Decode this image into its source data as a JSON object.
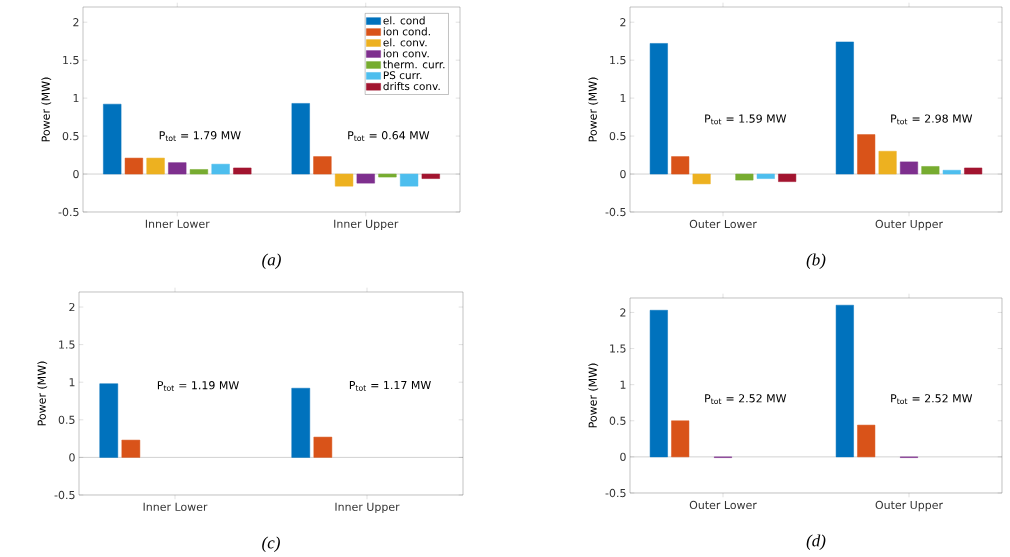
{
  "chart_data": [
    {
      "type": "bar",
      "categories": [
        "Inner Lower",
        "Inner Upper"
      ],
      "ylabel": "Power (MW)",
      "ylim": [
        -0.5,
        2.2
      ],
      "yticks": [
        -0.5,
        0,
        0.5,
        1,
        1.5,
        2
      ],
      "legend": "top right",
      "series": [
        {
          "name": "el. cond",
          "color": "#0072bd",
          "values": [
            0.92,
            0.93
          ]
        },
        {
          "name": "ion cond.",
          "color": "#d95319",
          "values": [
            0.21,
            0.23
          ]
        },
        {
          "name": "el. conv.",
          "color": "#edb120",
          "values": [
            0.21,
            -0.16
          ]
        },
        {
          "name": "ion conv.",
          "color": "#7e2f8e",
          "values": [
            0.15,
            -0.12
          ]
        },
        {
          "name": "therm. curr.",
          "color": "#77ac30",
          "values": [
            0.06,
            -0.04
          ]
        },
        {
          "name": "PS curr.",
          "color": "#4dbeee",
          "values": [
            0.13,
            -0.16
          ]
        },
        {
          "name": "drifts conv.",
          "color": "#a2142f",
          "values": [
            0.08,
            -0.06
          ]
        }
      ],
      "annotations": [
        "P$_{tot}$ = 1.79 MW",
        "P$_{tot}$ = 0.64 MW",
        "(a)"
      ]
    },
    {
      "type": "bar",
      "categories": [
        "Outer Lower",
        "Outer Upper"
      ],
      "ylabel": "Power (MW)",
      "ylim": [
        -0.5,
        2.2
      ],
      "yticks": [
        -0.5,
        0,
        0.5,
        1,
        1.5,
        2
      ],
      "series": [
        {
          "color": "#0072bd",
          "values": [
            1.72,
            1.74
          ]
        },
        {
          "color": "#d95319",
          "values": [
            0.23,
            0.52
          ]
        },
        {
          "color": "#edb120",
          "values": [
            -0.13,
            0.3
          ]
        },
        {
          "color": "#7e2f8e",
          "values": [
            0,
            0.16
          ]
        },
        {
          "color": "#77ac30",
          "values": [
            -0.08,
            0.1
          ]
        },
        {
          "color": "#4dbeee",
          "values": [
            -0.06,
            0.05
          ]
        },
        {
          "color": "#a2142f",
          "values": [
            -0.1,
            0.08
          ]
        }
      ],
      "annotations": [
        "P$_{tot}$ = 1.59 MW",
        "P$_{tot}$ = 2.98 MW",
        "(b)"
      ]
    },
    {
      "type": "bar",
      "categories": [
        "Inner Lower",
        "Inner Upper"
      ],
      "ylabel": "Power (MW)",
      "ylim": [
        -0.5,
        2.2
      ],
      "yticks": [
        -0.5,
        0,
        0.5,
        1,
        1.5,
        2
      ],
      "series": [
        {
          "color": "#0072bd",
          "values": [
            0.98,
            0.92
          ]
        },
        {
          "color": "#d95319",
          "values": [
            0.23,
            0.27
          ]
        },
        {
          "color": "#edb120",
          "values": [
            0,
            0
          ]
        },
        {
          "color": "#7e2f8e",
          "values": [
            0,
            0
          ]
        },
        {
          "color": "#77ac30",
          "values": [
            0,
            0
          ]
        },
        {
          "color": "#4dbeee",
          "values": [
            0,
            0
          ]
        },
        {
          "color": "#a2142f",
          "values": [
            0,
            0
          ]
        }
      ],
      "annotations": [
        "P$_{tot}$ = 1.19 MW",
        "P$_{tot}$ = 1.17 MW",
        "(c)"
      ]
    },
    {
      "type": "bar",
      "categories": [
        "Outer Lower",
        "Outer Upper"
      ],
      "ylabel": "Power (MW)",
      "ylim": [
        -0.5,
        2.2
      ],
      "yticks": [
        -0.5,
        0,
        0.5,
        1,
        1.5,
        2
      ],
      "series": [
        {
          "color": "#0072bd",
          "values": [
            2.03,
            2.1
          ]
        },
        {
          "color": "#d95319",
          "values": [
            0.5,
            0.44
          ]
        },
        {
          "color": "#edb120",
          "values": [
            0,
            0
          ]
        },
        {
          "color": "#7e2f8e",
          "values": [
            -0.01,
            -0.01
          ]
        },
        {
          "color": "#77ac30",
          "values": [
            0,
            0
          ]
        },
        {
          "color": "#4dbeee",
          "values": [
            0,
            0
          ]
        },
        {
          "color": "#a2142f",
          "values": [
            0,
            0
          ]
        }
      ],
      "annotations": [
        "P$_{tot}$ = 2.52 MW",
        "P$_{tot}$ = 2.52 MW",
        "(d)"
      ]
    }
  ]
}
